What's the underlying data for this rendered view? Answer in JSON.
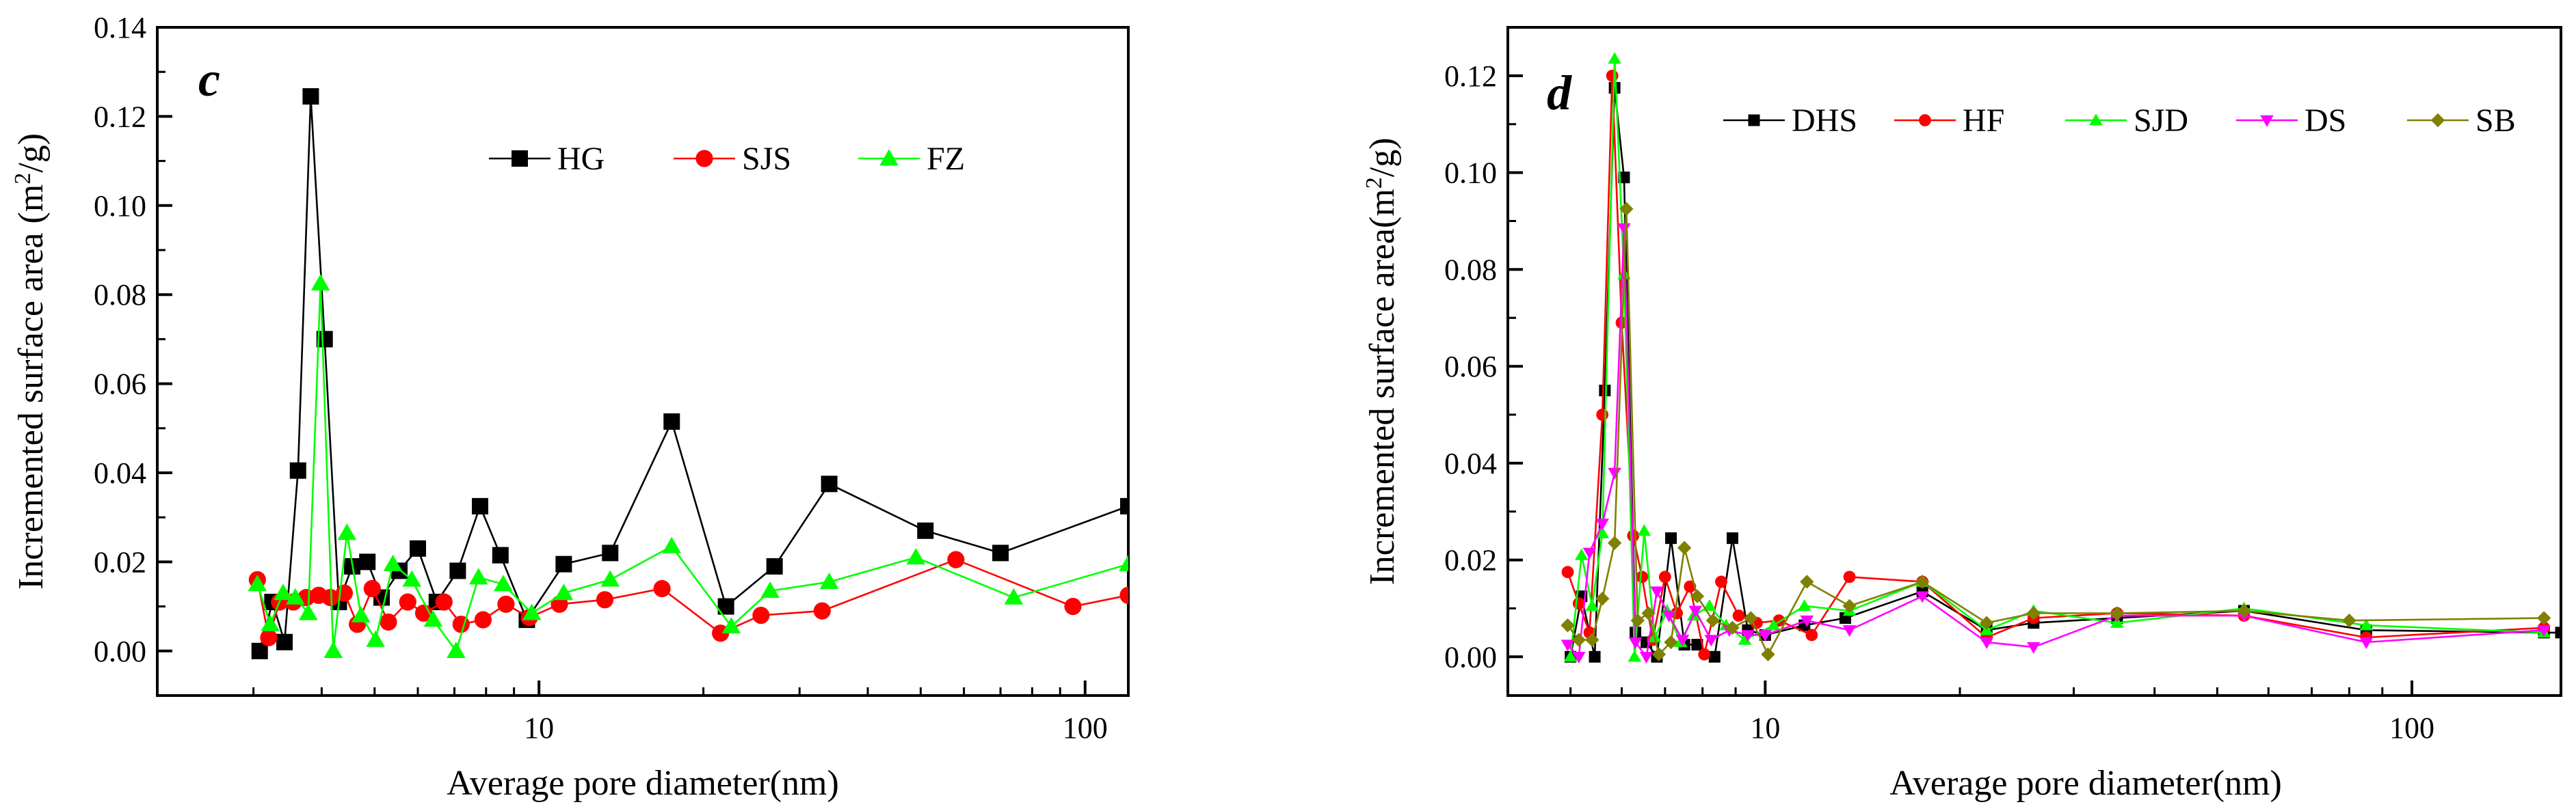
{
  "chart_data": [
    {
      "type": "line",
      "panel_label": "c",
      "xscale": "log",
      "xlim": [
        2.0,
        120
      ],
      "ylim": [
        -0.01,
        0.14
      ],
      "xlabel": "Average pore diameter(nm)",
      "ylabel_main": "Incremented surface area (m",
      "ylabel_sup": "2",
      "ylabel_end": "/g)",
      "xticks": [
        {
          "value": 10,
          "label": "10"
        },
        {
          "value": 100,
          "label": "100"
        }
      ],
      "yticks": [
        {
          "value": 0.0,
          "label": "0.00"
        },
        {
          "value": 0.02,
          "label": "0.02"
        },
        {
          "value": 0.04,
          "label": "0.04"
        },
        {
          "value": 0.06,
          "label": "0.06"
        },
        {
          "value": 0.08,
          "label": "0.08"
        },
        {
          "value": 0.1,
          "label": "0.10"
        },
        {
          "value": 0.12,
          "label": "0.12"
        },
        {
          "value": 0.14,
          "label": "0.14"
        }
      ],
      "legend_position": "top-center",
      "series": [
        {
          "name": "HG",
          "color": "#000000",
          "marker": "square",
          "x": [
            3.08,
            3.25,
            3.42,
            3.62,
            3.82,
            4.05,
            4.3,
            4.55,
            4.85,
            5.15,
            5.55,
            6.0,
            6.5,
            7.1,
            7.8,
            8.5,
            9.5,
            11.1,
            13.5,
            17.5,
            22,
            27,
            34,
            51,
            70,
            120
          ],
          "y": [
            0.0,
            0.011,
            0.002,
            0.0405,
            0.1245,
            0.07,
            0.011,
            0.019,
            0.02,
            0.012,
            0.018,
            0.023,
            0.011,
            0.018,
            0.0325,
            0.0215,
            0.007,
            0.0195,
            0.022,
            0.0515,
            0.01,
            0.019,
            0.0375,
            0.027,
            0.022,
            0.0325
          ]
        },
        {
          "name": "SJS",
          "color": "#ff0000",
          "marker": "circle",
          "x": [
            3.05,
            3.2,
            3.35,
            3.55,
            3.75,
            3.95,
            4.15,
            4.4,
            4.65,
            4.95,
            5.3,
            5.75,
            6.15,
            6.7,
            7.2,
            7.9,
            8.7,
            9.6,
            10.9,
            13.2,
            16.8,
            21.5,
            25.5,
            33,
            58,
            95,
            120
          ],
          "y": [
            0.016,
            0.003,
            0.011,
            0.011,
            0.012,
            0.0125,
            0.012,
            0.013,
            0.006,
            0.014,
            0.0065,
            0.011,
            0.0085,
            0.011,
            0.006,
            0.007,
            0.0105,
            0.0075,
            0.0105,
            0.0115,
            0.014,
            0.004,
            0.008,
            0.009,
            0.0205,
            0.01,
            0.0125
          ]
        },
        {
          "name": "FZ",
          "color": "#00ff00",
          "marker": "triangle",
          "x": [
            3.05,
            3.22,
            3.4,
            3.58,
            3.78,
            3.98,
            4.2,
            4.45,
            4.72,
            5.02,
            5.4,
            5.85,
            6.4,
            7.05,
            7.75,
            8.6,
            9.7,
            11.1,
            13.5,
            17.5,
            22.5,
            26.5,
            34,
            49,
            74,
            120
          ],
          "y": [
            0.015,
            0.006,
            0.013,
            0.012,
            0.0085,
            0.0825,
            0.0,
            0.0265,
            0.008,
            0.0025,
            0.0195,
            0.016,
            0.007,
            0.0,
            0.0165,
            0.015,
            0.0085,
            0.013,
            0.016,
            0.0235,
            0.0055,
            0.0135,
            0.0155,
            0.021,
            0.012,
            0.0195
          ]
        }
      ]
    },
    {
      "type": "line",
      "panel_label": "d",
      "xscale": "log",
      "xlim": [
        4.0,
        170
      ],
      "ylim": [
        -0.008,
        0.13
      ],
      "xlabel": "Average pore diameter(nm)",
      "ylabel_main": "Incremented surface area(m",
      "ylabel_sup": "2",
      "ylabel_end": "/g)",
      "xticks": [
        {
          "value": 10,
          "label": "10"
        },
        {
          "value": 100,
          "label": "100"
        }
      ],
      "yticks": [
        {
          "value": 0.0,
          "label": "0.00"
        },
        {
          "value": 0.02,
          "label": "0.02"
        },
        {
          "value": 0.04,
          "label": "0.04"
        },
        {
          "value": 0.06,
          "label": "0.06"
        },
        {
          "value": 0.08,
          "label": "0.08"
        },
        {
          "value": 0.1,
          "label": "0.10"
        },
        {
          "value": 0.12,
          "label": "0.12"
        }
      ],
      "legend_position": "top",
      "series": [
        {
          "name": "DHS",
          "color": "#000000",
          "marker": "square",
          "x": [
            5.0,
            5.2,
            5.45,
            5.65,
            5.85,
            6.05,
            6.3,
            6.55,
            6.8,
            7.15,
            7.5,
            7.85,
            8.35,
            8.9,
            9.4,
            10.0,
            11.5,
            13.3,
            17.5,
            22,
            26,
            35,
            55,
            85,
            160,
            170
          ],
          "y": [
            0.0,
            0.0125,
            0.0,
            0.055,
            0.1175,
            0.099,
            0.005,
            0.003,
            0.0,
            0.0245,
            0.0025,
            0.0025,
            0.0,
            0.0245,
            0.0055,
            0.0045,
            0.0065,
            0.008,
            0.0135,
            0.0055,
            0.007,
            0.008,
            0.0095,
            0.0055,
            0.005,
            0.005
          ]
        },
        {
          "name": "HF",
          "color": "#ff0000",
          "marker": "circle",
          "x": [
            4.95,
            5.15,
            5.35,
            5.6,
            5.8,
            6.0,
            6.25,
            6.45,
            6.7,
            7.0,
            7.3,
            7.65,
            8.05,
            8.55,
            9.1,
            9.7,
            10.5,
            11.8,
            13.5,
            17.5,
            22,
            26,
            35,
            55,
            85,
            160
          ],
          "y": [
            0.0175,
            0.011,
            0.005,
            0.05,
            0.12,
            0.069,
            0.025,
            0.0165,
            0.0035,
            0.0165,
            0.009,
            0.0145,
            0.0005,
            0.0155,
            0.0085,
            0.007,
            0.0075,
            0.0045,
            0.0165,
            0.0155,
            0.004,
            0.008,
            0.009,
            0.0085,
            0.004,
            0.006
          ]
        },
        {
          "name": "SJD",
          "color": "#00ff00",
          "marker": "triangle",
          "x": [
            5.0,
            5.2,
            5.4,
            5.6,
            5.85,
            6.05,
            6.28,
            6.5,
            6.75,
            7.05,
            7.4,
            7.75,
            8.2,
            8.7,
            9.3,
            10.3,
            11.5,
            13.5,
            17.5,
            22,
            26,
            35,
            55,
            85,
            160
          ],
          "y": [
            0.0,
            0.021,
            0.0105,
            0.0255,
            0.1235,
            0.079,
            0.0,
            0.026,
            0.004,
            0.0095,
            0.003,
            0.0085,
            0.0105,
            0.0065,
            0.0035,
            0.0065,
            0.0105,
            0.0095,
            0.0155,
            0.0055,
            0.0095,
            0.007,
            0.01,
            0.0065,
            0.005
          ]
        },
        {
          "name": "DS",
          "color": "#ff00ff",
          "marker": "triangle-down",
          "x": [
            4.95,
            5.15,
            5.35,
            5.6,
            5.85,
            6.05,
            6.3,
            6.55,
            6.8,
            7.1,
            7.45,
            7.8,
            8.25,
            8.8,
            9.4,
            10.0,
            11.6,
            13.5,
            17.5,
            22,
            26,
            35,
            55,
            85,
            160
          ],
          "y": [
            0.0025,
            0.0,
            0.0215,
            0.0275,
            0.038,
            0.0885,
            0.003,
            0.0,
            0.0135,
            0.0085,
            0.0035,
            0.0095,
            0.0035,
            0.0055,
            0.0045,
            0.0045,
            0.0075,
            0.0055,
            0.0125,
            0.003,
            0.002,
            0.0085,
            0.0085,
            0.003,
            0.0055
          ]
        },
        {
          "name": "SB",
          "color": "#808000",
          "marker": "diamond",
          "x": [
            4.95,
            5.15,
            5.4,
            5.6,
            5.85,
            6.1,
            6.35,
            6.6,
            6.85,
            7.15,
            7.5,
            7.85,
            8.3,
            8.9,
            9.5,
            10.1,
            11.6,
            13.5,
            17.5,
            22,
            26,
            35,
            55,
            80,
            160
          ],
          "y": [
            0.0065,
            0.0035,
            0.0035,
            0.012,
            0.0235,
            0.0925,
            0.0075,
            0.009,
            0.0005,
            0.003,
            0.0225,
            0.0125,
            0.0075,
            0.006,
            0.008,
            0.0005,
            0.0155,
            0.0105,
            0.0155,
            0.007,
            0.009,
            0.009,
            0.0095,
            0.0075,
            0.008
          ]
        }
      ]
    }
  ]
}
